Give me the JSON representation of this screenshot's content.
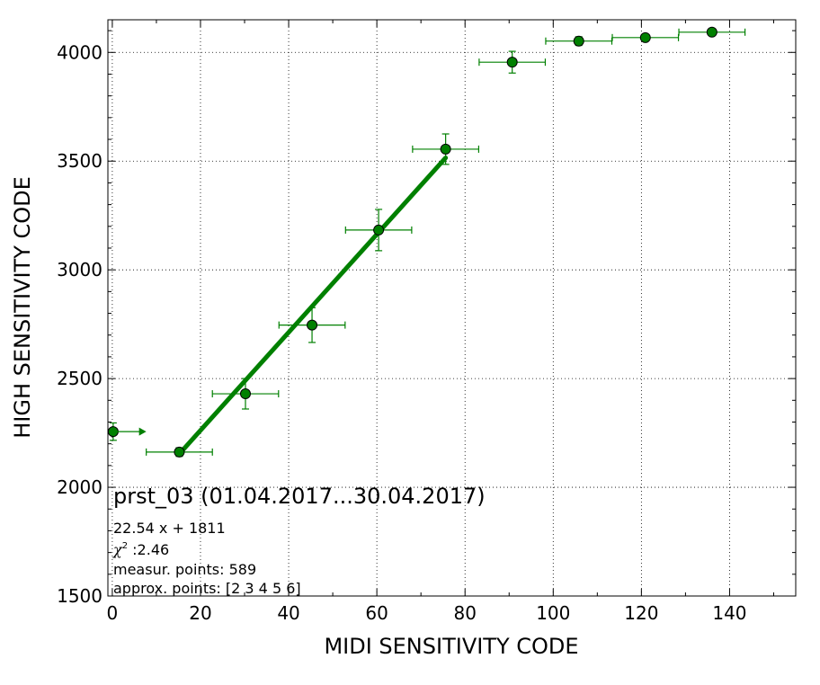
{
  "chart_data": {
    "type": "scatter",
    "xlabel": "MIDI SENSITIVITY CODE",
    "ylabel": "HIGH SENSITIVITY CODE",
    "xlim": [
      -1,
      155
    ],
    "ylim": [
      1500,
      4150
    ],
    "xticks": [
      0,
      20,
      40,
      60,
      80,
      100,
      120,
      140
    ],
    "yticks": [
      1500,
      2000,
      2500,
      3000,
      3500,
      4000
    ],
    "grid": true,
    "color": "#008000",
    "points": [
      {
        "x": 0.2,
        "y": 2256,
        "xerr": 0,
        "yerr": 40
      },
      {
        "x": 15.2,
        "y": 2162,
        "xerr": 7.5,
        "yerr": 20
      },
      {
        "x": 30.2,
        "y": 2430,
        "xerr": 7.5,
        "yerr": 70
      },
      {
        "x": 45.3,
        "y": 2746,
        "xerr": 7.5,
        "yerr": 80
      },
      {
        "x": 60.4,
        "y": 3183,
        "xerr": 7.5,
        "yerr": 95
      },
      {
        "x": 75.6,
        "y": 3555,
        "xerr": 7.5,
        "yerr": 70
      },
      {
        "x": 90.7,
        "y": 3955,
        "xerr": 7.5,
        "yerr": 50
      },
      {
        "x": 105.8,
        "y": 4052,
        "xerr": 7.5,
        "yerr": 20
      },
      {
        "x": 120.9,
        "y": 4068,
        "xerr": 7.5,
        "yerr": 10
      },
      {
        "x": 136.0,
        "y": 4093,
        "xerr": 7.5,
        "yerr": 10
      }
    ],
    "arrow": {
      "x_from": 0.2,
      "x_to": 7.7,
      "y": 2256
    },
    "fit": {
      "slope": 22.54,
      "intercept": 1811,
      "x_range": [
        15.2,
        75.6
      ]
    },
    "annotations": {
      "title": "prst_03 (01.04.2017...30.04.2017)",
      "equation": "22.54 x + 1811",
      "chi_symbol": "χ",
      "chi_exp": "2",
      "chi_value": " :2.46",
      "measur_points": "measur. points: 589",
      "approx_points": "approx. points: [2 3 4 5 6]"
    }
  }
}
